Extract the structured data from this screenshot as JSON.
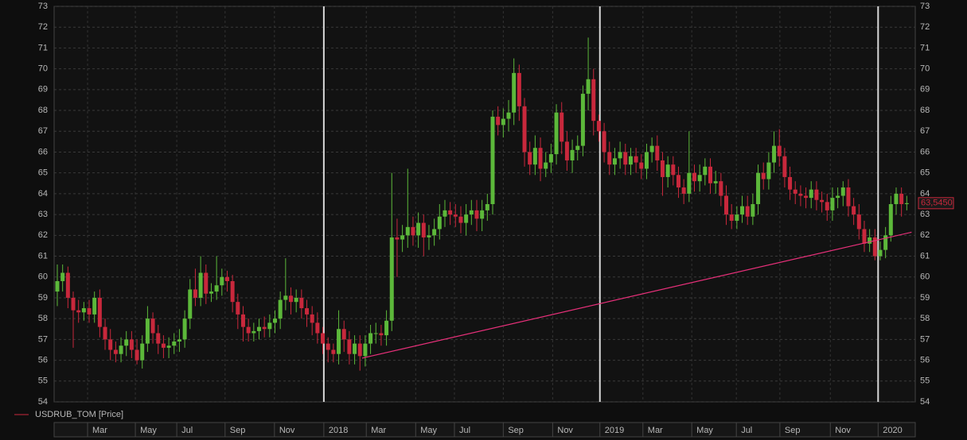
{
  "chart_data": {
    "type": "candlestick",
    "series": [
      {
        "name": "USDRUB_TOM [Price]",
        "color": "#c8283c",
        "up_color": "#5cb83a",
        "down_color": "#c8283c",
        "open": [
          59.3,
          59.8,
          60.2,
          59.0,
          58.4,
          58.3,
          58.5,
          58.2,
          59.0,
          57.6,
          57.0,
          56.5,
          56.3,
          56.7,
          57.0,
          56.5,
          56.0,
          56.8,
          58.0,
          57.3,
          56.8,
          56.6,
          56.7,
          56.9,
          57.0,
          58.0,
          59.4,
          59.0,
          60.2,
          59.2,
          59.3,
          59.6,
          60.0,
          59.8,
          58.8,
          58.2,
          57.6,
          57.3,
          57.4,
          57.6,
          57.5,
          57.8,
          58.0,
          58.9,
          59.1,
          58.8,
          59.0,
          58.5,
          58.2,
          57.8,
          57.3,
          56.8,
          56.5,
          56.3,
          57.5,
          57.0,
          56.3,
          56.8,
          56.2,
          56.8,
          57.3,
          57.3,
          57.2,
          57.9,
          61.9,
          61.8,
          62.0,
          62.4,
          62.0,
          62.6,
          61.9,
          62.0,
          62.3,
          62.9,
          63.2,
          63.0,
          62.9,
          62.6,
          63.0,
          63.2,
          62.8,
          63.2,
          63.5,
          67.7,
          67.3,
          67.6,
          67.9,
          69.8,
          68.2,
          66.0,
          65.4,
          66.2,
          65.2,
          65.5,
          65.9,
          67.9,
          66.5,
          65.6,
          66.1,
          66.3,
          68.8,
          69.5,
          67.5,
          67.0,
          66.0,
          65.4,
          65.7,
          66.0,
          65.4,
          65.8,
          65.5,
          65.2,
          66.0,
          66.3,
          65.6,
          64.8,
          65.4,
          64.9,
          64.3,
          64.0,
          65.0,
          64.6,
          64.9,
          65.3,
          64.5,
          64.6,
          63.9,
          63.0,
          62.7,
          63.0,
          63.4,
          62.9,
          63.5,
          65.0,
          64.7,
          65.5,
          66.3,
          65.8,
          64.8,
          64.2,
          64.0,
          63.9,
          63.8,
          64.2,
          63.7,
          63.6,
          63.2,
          63.8,
          63.9,
          64.3,
          63.4,
          63.0,
          62.3,
          61.6,
          61.9,
          61.0,
          61.3,
          62.0,
          63.5,
          64.0,
          63.5
        ],
        "high": [
          60.6,
          60.6,
          60.5,
          59.3,
          58.9,
          58.8,
          58.9,
          59.3,
          59.4,
          58.0,
          57.5,
          56.9,
          57.1,
          57.4,
          57.4,
          57.0,
          57.2,
          58.6,
          58.3,
          57.7,
          57.2,
          57.1,
          57.3,
          57.5,
          58.4,
          59.9,
          60.4,
          61.0,
          60.6,
          59.7,
          61.0,
          60.4,
          60.3,
          60.1,
          59.2,
          58.6,
          58.0,
          57.8,
          58.0,
          58.1,
          58.2,
          58.4,
          59.3,
          60.9,
          59.5,
          59.4,
          59.4,
          58.9,
          58.6,
          58.3,
          57.6,
          57.1,
          56.8,
          58.4,
          57.9,
          57.4,
          57.2,
          57.2,
          57.2,
          57.7,
          57.8,
          57.7,
          58.4,
          65.0,
          62.8,
          62.5,
          65.2,
          62.9,
          63.1,
          63.0,
          62.5,
          62.8,
          63.5,
          63.7,
          63.6,
          63.5,
          63.4,
          63.5,
          63.7,
          63.7,
          63.7,
          64.0,
          68.0,
          68.2,
          68.1,
          68.5,
          70.5,
          70.2,
          68.6,
          66.5,
          66.8,
          66.7,
          66.0,
          66.4,
          68.3,
          68.4,
          67.0,
          66.6,
          66.8,
          69.2,
          71.5,
          70.0,
          67.8,
          67.4,
          66.5,
          66.2,
          66.5,
          66.4,
          66.2,
          66.2,
          65.9,
          66.4,
          66.7,
          66.8,
          66.0,
          65.8,
          65.8,
          65.3,
          64.7,
          67.0,
          65.4,
          65.4,
          65.7,
          65.7,
          65.1,
          65.0,
          64.4,
          63.5,
          63.4,
          63.9,
          63.9,
          64.0,
          65.4,
          65.5,
          66.0,
          67.0,
          67.1,
          66.2,
          65.3,
          64.6,
          64.4,
          64.3,
          64.6,
          64.6,
          64.1,
          64.0,
          64.3,
          64.3,
          64.6,
          64.7,
          63.8,
          63.5,
          62.7,
          62.3,
          62.3,
          61.7,
          62.4,
          63.9,
          64.3,
          64.3,
          63.9
        ],
        "low": [
          58.6,
          59.3,
          58.5,
          56.6,
          57.8,
          57.9,
          57.8,
          57.8,
          57.1,
          56.5,
          56.0,
          55.9,
          55.9,
          56.2,
          56.1,
          55.8,
          55.6,
          56.4,
          56.8,
          56.3,
          56.1,
          56.1,
          56.3,
          56.4,
          56.6,
          57.5,
          58.6,
          58.6,
          58.7,
          58.8,
          58.9,
          59.1,
          59.3,
          58.3,
          57.5,
          56.9,
          56.9,
          56.9,
          57.0,
          57.1,
          57.1,
          57.3,
          57.5,
          58.4,
          58.2,
          58.3,
          58.0,
          57.6,
          57.2,
          56.8,
          56.3,
          55.9,
          55.9,
          55.8,
          56.4,
          55.8,
          55.8,
          55.5,
          55.7,
          56.3,
          56.8,
          56.7,
          56.7,
          57.4,
          60.0,
          61.2,
          61.4,
          61.5,
          61.4,
          61.0,
          61.3,
          61.5,
          61.8,
          62.4,
          62.5,
          62.4,
          62.1,
          62.0,
          62.5,
          62.2,
          62.2,
          62.7,
          63.0,
          66.8,
          66.7,
          67.0,
          67.3,
          67.5,
          65.3,
          64.9,
          64.9,
          64.6,
          64.8,
          65.0,
          65.4,
          65.9,
          65.1,
          65.0,
          65.6,
          65.8,
          68.0,
          66.8,
          66.5,
          65.5,
          64.9,
          64.9,
          65.2,
          64.9,
          64.9,
          65.0,
          64.7,
          64.7,
          65.5,
          65.1,
          63.9,
          64.3,
          64.4,
          63.8,
          63.5,
          63.6,
          64.1,
          64.1,
          64.4,
          64.0,
          64.0,
          63.4,
          62.5,
          62.3,
          62.3,
          62.6,
          62.5,
          62.5,
          63.0,
          64.2,
          64.2,
          65.0,
          65.3,
          64.3,
          63.7,
          63.5,
          63.4,
          63.3,
          63.3,
          63.2,
          63.1,
          62.7,
          62.7,
          63.3,
          63.4,
          62.9,
          62.5,
          61.8,
          61.2,
          61.2,
          60.8,
          60.8,
          60.9,
          61.7,
          63.0,
          62.9,
          63.2
        ],
        "close": [
          59.8,
          60.2,
          59.0,
          58.4,
          58.3,
          58.5,
          58.2,
          59.0,
          57.6,
          57.0,
          56.5,
          56.3,
          56.7,
          57.0,
          56.5,
          56.0,
          56.8,
          58.0,
          57.3,
          56.8,
          56.6,
          56.7,
          56.9,
          57.0,
          58.0,
          59.4,
          59.0,
          60.2,
          59.2,
          59.3,
          59.6,
          60.0,
          59.8,
          58.8,
          58.2,
          57.6,
          57.3,
          57.4,
          57.6,
          57.5,
          57.8,
          58.0,
          58.9,
          59.1,
          58.8,
          59.0,
          58.5,
          58.2,
          57.8,
          57.3,
          56.8,
          56.5,
          56.3,
          57.5,
          57.0,
          56.3,
          56.8,
          56.2,
          56.8,
          57.3,
          57.3,
          57.2,
          57.9,
          61.9,
          61.8,
          62.0,
          62.4,
          62.0,
          62.6,
          61.9,
          62.0,
          62.3,
          62.9,
          63.2,
          63.0,
          62.9,
          62.6,
          63.0,
          63.2,
          62.8,
          63.2,
          63.5,
          67.7,
          67.3,
          67.6,
          67.9,
          69.8,
          68.2,
          66.0,
          65.4,
          66.2,
          65.2,
          65.5,
          65.9,
          67.9,
          66.5,
          65.6,
          66.1,
          66.3,
          68.8,
          69.5,
          67.5,
          67.0,
          66.0,
          65.4,
          65.7,
          66.0,
          65.4,
          65.8,
          65.5,
          65.2,
          66.0,
          66.3,
          65.6,
          64.8,
          65.4,
          64.9,
          64.3,
          64.0,
          65.0,
          64.6,
          64.9,
          65.3,
          64.5,
          64.6,
          63.9,
          63.0,
          62.7,
          63.0,
          63.4,
          62.9,
          63.5,
          65.0,
          64.7,
          65.5,
          66.3,
          65.8,
          64.8,
          64.2,
          64.0,
          63.9,
          63.8,
          64.2,
          63.7,
          63.6,
          63.2,
          63.8,
          63.9,
          64.3,
          63.4,
          63.0,
          62.3,
          61.6,
          61.9,
          61.0,
          61.3,
          62.0,
          63.5,
          64.0,
          63.5,
          63.545
        ],
        "last_price": {
          "value": 63.545,
          "label": "63,5450"
        }
      }
    ],
    "trendline": {
      "x": [
        57.4,
        160.9
      ],
      "y": [
        56.1,
        62.15
      ],
      "color": "#e8307a"
    },
    "xlim": [
      -0.6,
      161.6
    ],
    "xticks": [
      {
        "value": 5.7,
        "label": "Mar"
      },
      {
        "value": 14.7,
        "label": "May"
      },
      {
        "value": 22.5,
        "label": "Jul"
      },
      {
        "value": 31.6,
        "label": "Sep"
      },
      {
        "value": 40.9,
        "label": "Nov"
      },
      {
        "value": 50.2,
        "label": "2018"
      },
      {
        "value": 58.2,
        "label": "Mar"
      },
      {
        "value": 67.5,
        "label": "May"
      },
      {
        "value": 74.8,
        "label": "Jul"
      },
      {
        "value": 84.0,
        "label": "Sep"
      },
      {
        "value": 93.3,
        "label": "Nov"
      },
      {
        "value": 102.2,
        "label": "2019"
      },
      {
        "value": 110.3,
        "label": "Mar"
      },
      {
        "value": 119.5,
        "label": "May"
      },
      {
        "value": 127.9,
        "label": "Jul"
      },
      {
        "value": 136.1,
        "label": "Sep"
      },
      {
        "value": 145.6,
        "label": "Nov"
      },
      {
        "value": 154.6,
        "label": "2020"
      }
    ],
    "ylim": [
      54,
      73
    ],
    "yticks": [
      54,
      55,
      56,
      57,
      58,
      59,
      60,
      61,
      62,
      63,
      64,
      65,
      66,
      67,
      68,
      69,
      70,
      71,
      72,
      73
    ],
    "grid": true,
    "legend": "bottom-left"
  }
}
